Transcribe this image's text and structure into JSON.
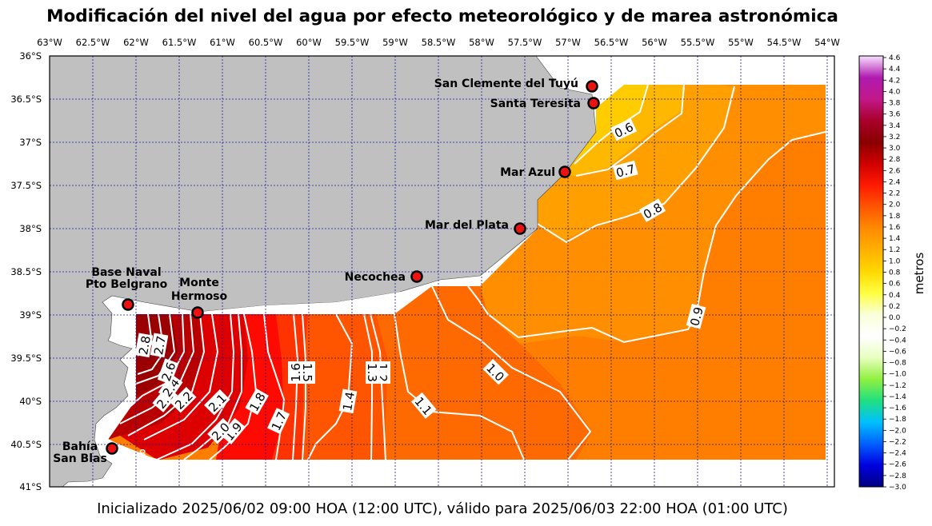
{
  "title": "Modificación del nivel del agua por efecto meteorológico y de marea astronómica",
  "footer": "Inicializado 2025/06/02 09:00 HOA (12:00 UTC), válido para 2025/06/03 22:00 HOA (01:00 UTC)",
  "axes": {
    "lon_labels": [
      "63°W",
      "62.5°W",
      "62°W",
      "61.5°W",
      "61°W",
      "60.5°W",
      "60°W",
      "59.5°W",
      "59°W",
      "58.5°W",
      "58°W",
      "57.5°W",
      "57°W",
      "56.5°W",
      "56°W",
      "55.5°W",
      "55°W",
      "54.5°W",
      "54°W"
    ],
    "lat_labels": [
      "36°S",
      "36.5°S",
      "37°S",
      "37.5°S",
      "38°S",
      "38.5°S",
      "39°S",
      "39.5°S",
      "40°S",
      "40.5°S",
      "41°S"
    ]
  },
  "stations": [
    {
      "name": "San Clemente del Tuyú",
      "lon": -56.7,
      "lat": -36.35
    },
    {
      "name": "Santa Teresita",
      "lon": -56.7,
      "lat": -36.55
    },
    {
      "name": "Mar Azul",
      "lon": -57.0,
      "lat": -37.35
    },
    {
      "name": "Mar del Plata",
      "lon": -57.5,
      "lat": -38.0
    },
    {
      "name": "Necochea",
      "lon": -58.75,
      "lat": -38.57
    },
    {
      "name": "Base Naval Pto Belgrano",
      "lon": -62.08,
      "lat": -38.88
    },
    {
      "name": "Monte Hermoso",
      "lon": -61.28,
      "lat": -38.99
    },
    {
      "name": "Bahía San Blas",
      "lon": -62.27,
      "lat": -40.56
    }
  ],
  "station_label_lines": {
    "belgrano": [
      "Base Naval",
      "Pto Belgrano"
    ],
    "monte": [
      "Monte",
      "Hermoso"
    ],
    "blas": [
      "Bahía",
      "San Blas"
    ]
  },
  "contour_labels": [
    "0.6",
    "0.7",
    "0.8",
    "0.9",
    "1.0",
    "1.1",
    "1.2",
    "1.3",
    "1.4",
    "1.5",
    "1.6",
    "1.7",
    "1.8",
    "1.9",
    "2.0",
    "2.1",
    "2.2",
    "2.3",
    "2.4",
    "2.6",
    "2.7",
    "2.8",
    "1.8"
  ],
  "colorbar": {
    "label": "metros",
    "ticks": [
      "4.6",
      "4.4",
      "4.2",
      "4.0",
      "3.8",
      "3.6",
      "3.4",
      "3.2",
      "3.0",
      "2.8",
      "2.6",
      "2.4",
      "2.2",
      "2.0",
      "1.8",
      "1.6",
      "1.4",
      "1.2",
      "1.0",
      "0.8",
      "0.6",
      "0.4",
      "0.2",
      "0.0",
      "−0.2",
      "−0.4",
      "−0.6",
      "−0.8",
      "−1.0",
      "−1.2",
      "−1.4",
      "−1.6",
      "−1.8",
      "−2.0",
      "−2.2",
      "−2.4",
      "−2.6",
      "−2.8",
      "−3.0"
    ],
    "stops": [
      "#f8e0ff",
      "#b01ab0",
      "#c2188a",
      "#a8002a",
      "#8a0000",
      "#d00000",
      "#ff1a00",
      "#ff5500",
      "#ff8a00",
      "#ffb000",
      "#ffd800",
      "#ffff40",
      "#f8ffd8",
      "#ffffff",
      "#e8ffc0",
      "#90f040",
      "#20e080",
      "#00c0ff",
      "#0060ff",
      "#0000e0",
      "#000080"
    ]
  },
  "colors": {
    "land": "#c0c0c0",
    "ocean_bg": "#ffffff",
    "grid": "#1a1aa0",
    "station_fill": "#ee1111",
    "contour_line": "#ffffff"
  }
}
